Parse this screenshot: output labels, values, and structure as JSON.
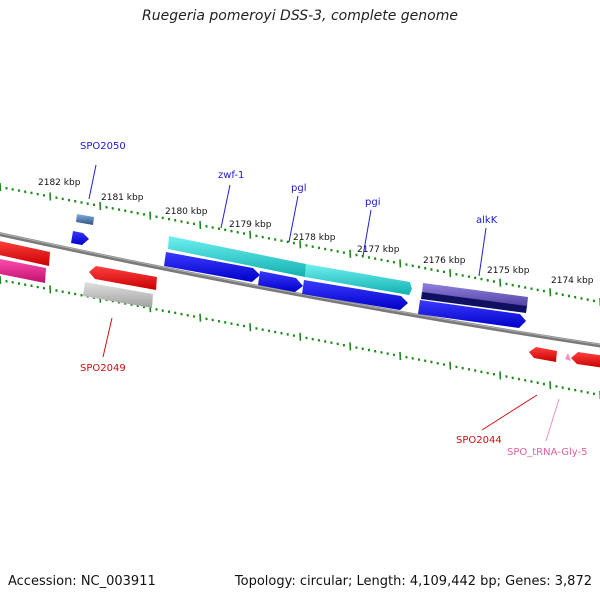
{
  "title": "Ruegeria pomeroyi DSS-3, complete genome",
  "footer": {
    "accession": "Accession: NC_003911",
    "summary": "Topology: circular; Length: 4,109,442 bp; Genes: 3,872"
  },
  "colors": {
    "backbone": "#808080",
    "tick": "#1a8a1a",
    "forward_cds": "#1010e0",
    "rna_forward": "#20c8c8",
    "rna_forward_alt": "#7060c0",
    "reverse_cds": "#e01010",
    "reverse_alt": "#e02090",
    "pseudo": "#b8b8b8",
    "trna": "#f080c0",
    "forward_label": "#1a1ad0",
    "reverse_label": "#cc1111",
    "trna_label": "#e060a0"
  },
  "scale_labels": [
    "2182 kbp",
    "2181 kbp",
    "2180 kbp",
    "2179 kbp",
    "2178 kbp",
    "2177 kbp",
    "2176 kbp",
    "2175 kbp",
    "2174 kbp"
  ],
  "forward_labels": [
    "SPO2050",
    "zwf-1",
    "pgl",
    "pgi",
    "alkK"
  ],
  "reverse_labels": [
    "SPO2049",
    "SPO2044",
    "SPO_tRNA-Gly-5"
  ]
}
